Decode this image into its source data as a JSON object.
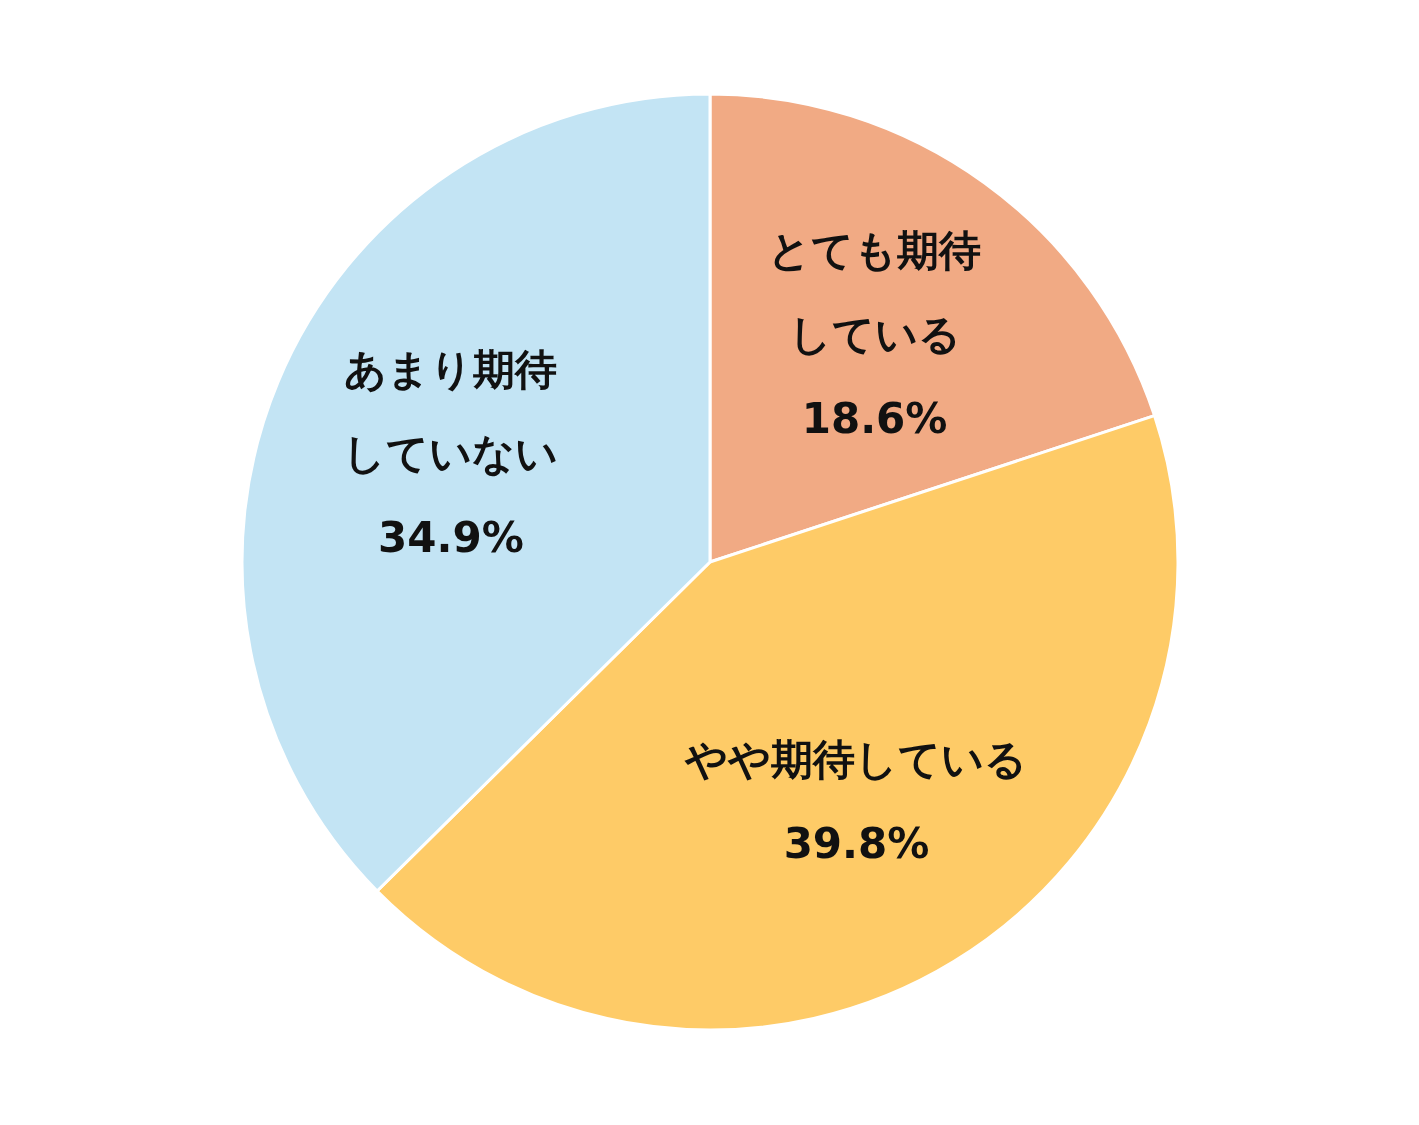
{
  "chart_data": {
    "type": "pie",
    "categories": [
      "とても期待している",
      "やや期待している",
      "あまり期待していない"
    ],
    "values": [
      18.6,
      39.8,
      34.9
    ],
    "colors": [
      "#f1aa84",
      "#fecb67",
      "#c3e4f4"
    ],
    "value_labels": [
      "18.6%",
      "39.8%",
      "34.9%"
    ]
  }
}
